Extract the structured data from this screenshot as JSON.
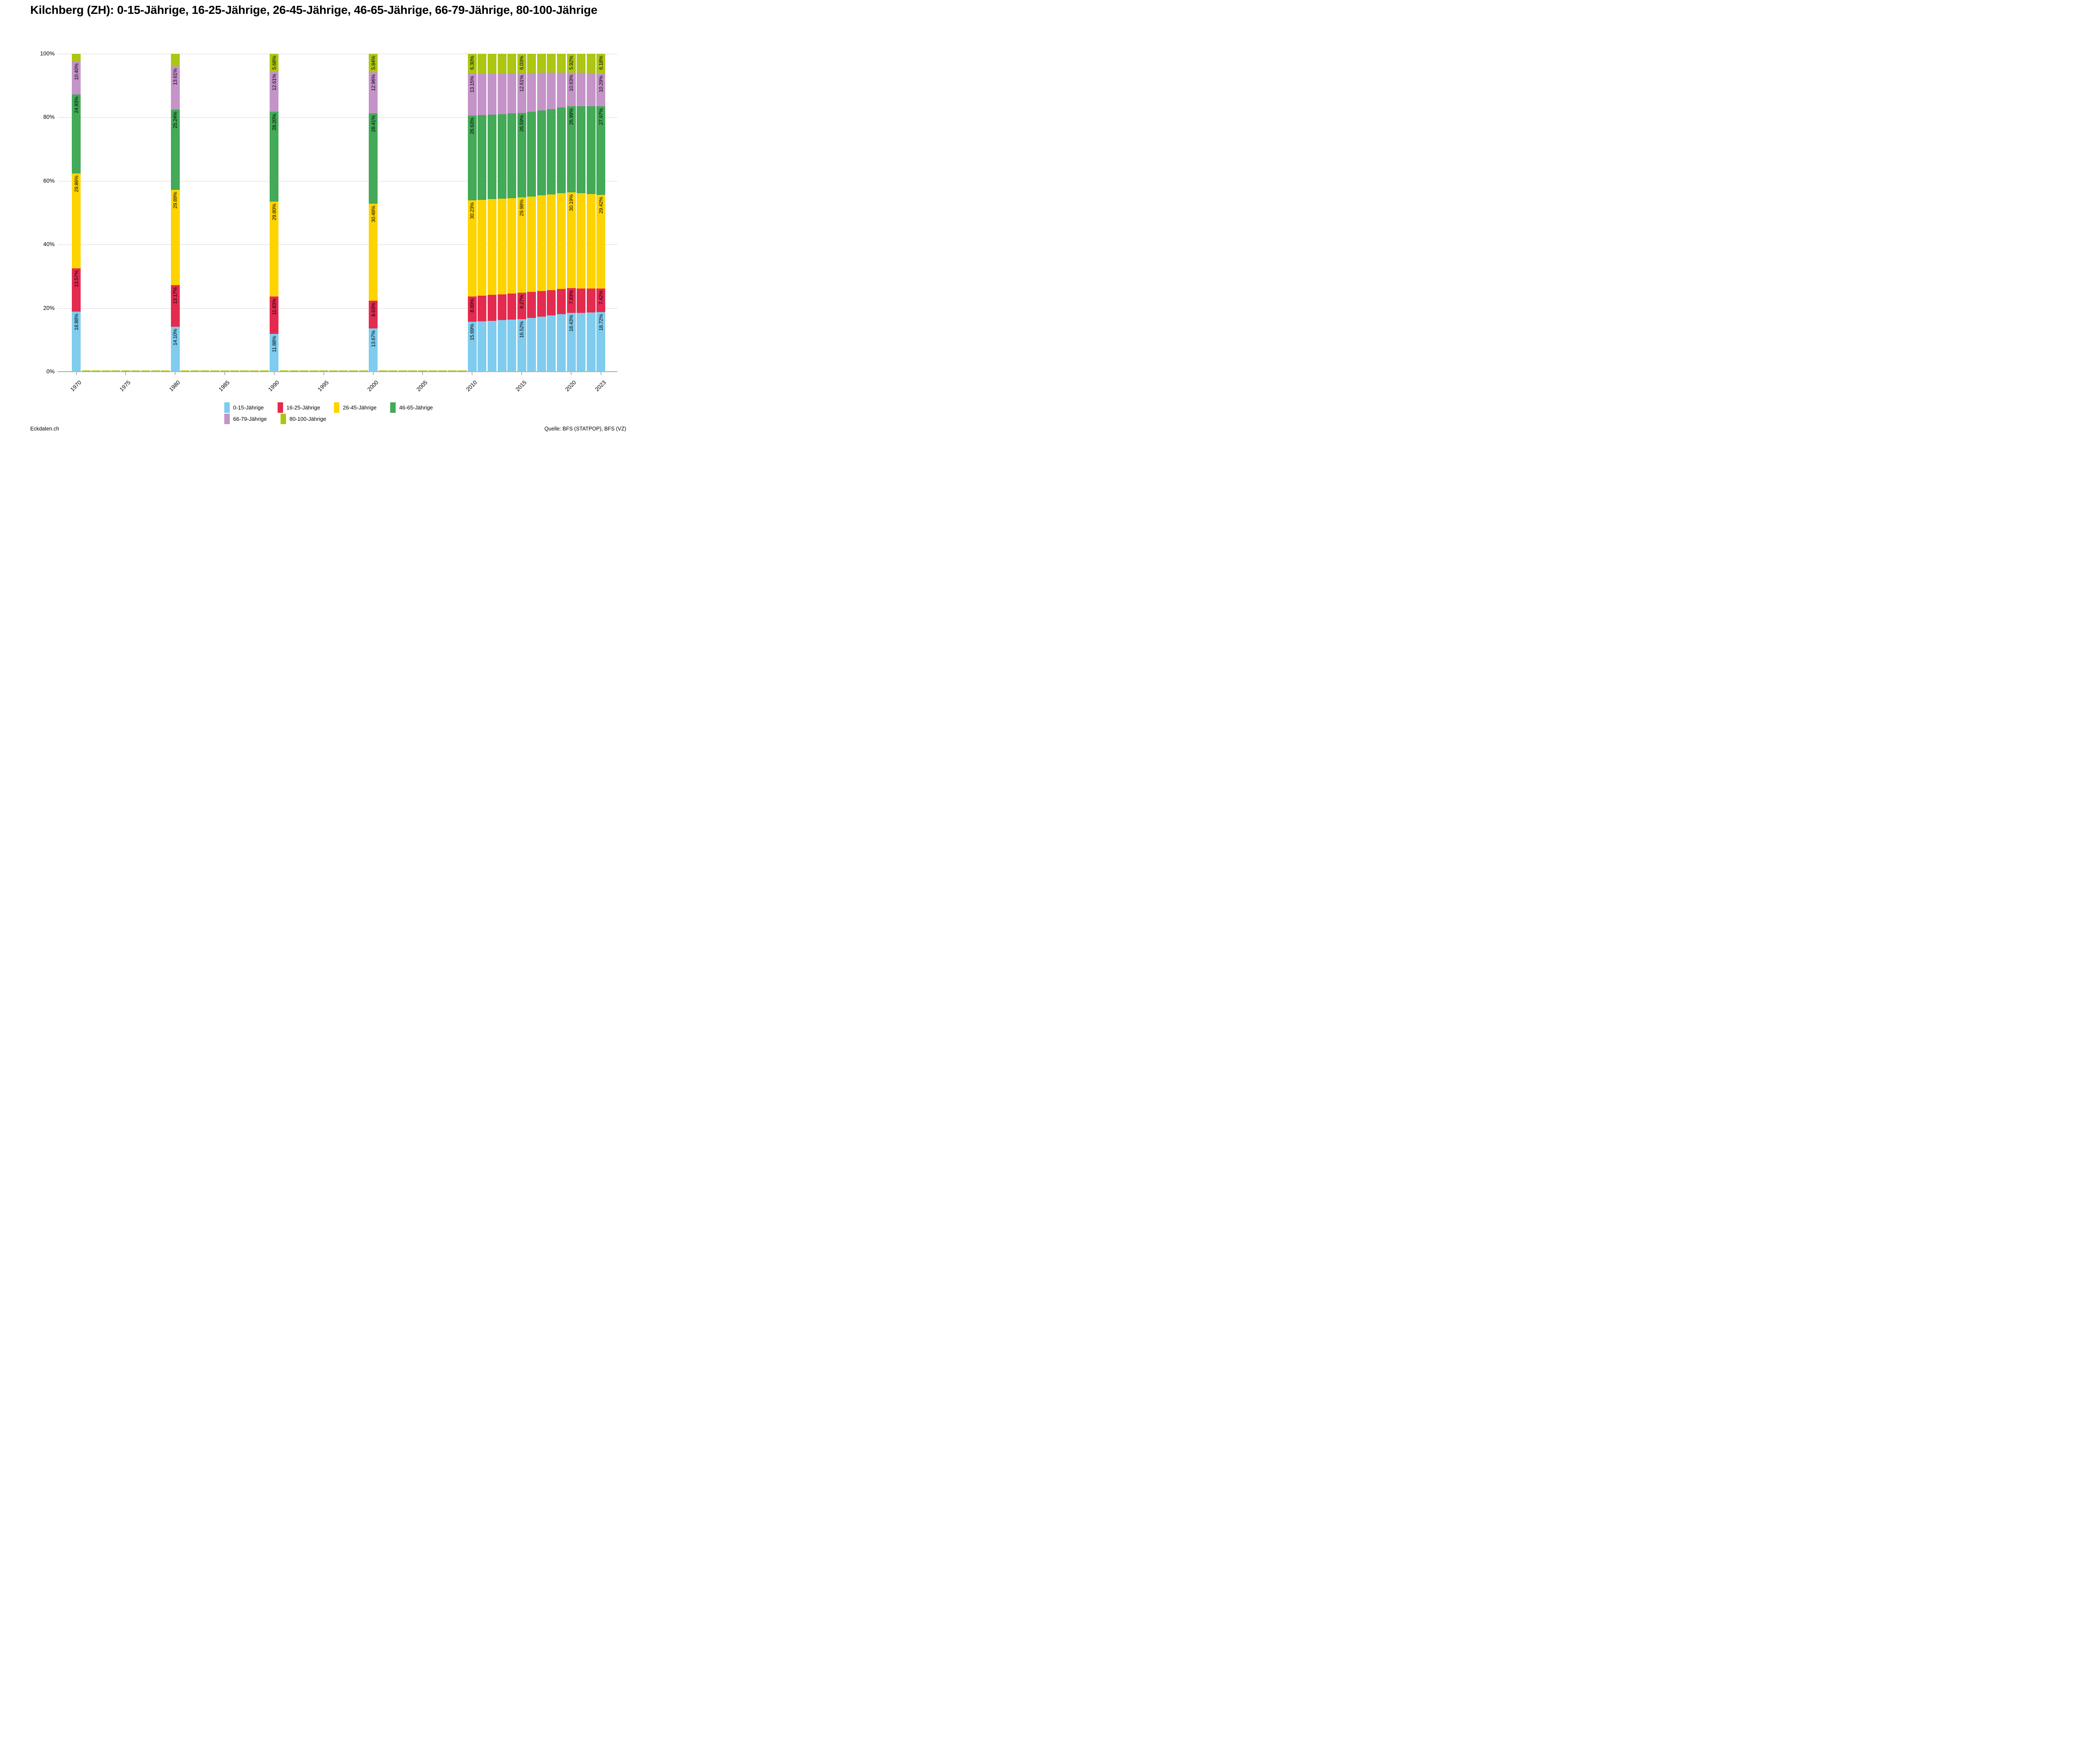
{
  "title": "Kilchberg (ZH): 0-15-Jährige, 16-25-Jährige, 26-45-Jährige, 46-65-Jährige, 66-79-Jährige, 80-100-Jährige",
  "footer": {
    "left": "Eckdaten.ch",
    "right": "Quelle: BFS (STATPOP), BFS (VZ)"
  },
  "legend": {
    "items": [
      {
        "label": "0-15-Jährige",
        "color": "#7fccee",
        "row": 1
      },
      {
        "label": "16-25-Jährige",
        "color": "#e52a50",
        "row": 1
      },
      {
        "label": "26-45-Jährige",
        "color": "#fdd400",
        "row": 1
      },
      {
        "label": "46-65-Jährige",
        "color": "#43aa57",
        "row": 1
      },
      {
        "label": "66-79-Jährige",
        "color": "#c493c8",
        "row": 2
      },
      {
        "label": "80-100-Jährige",
        "color": "#adc613",
        "row": 2
      }
    ]
  },
  "axes": {
    "y_ticks": [
      {
        "value": 0,
        "label": "0%"
      },
      {
        "value": 20,
        "label": "20%"
      },
      {
        "value": 40,
        "label": "40%"
      },
      {
        "value": 60,
        "label": "60%"
      },
      {
        "value": 80,
        "label": "80%"
      },
      {
        "value": 100,
        "label": "100%"
      }
    ],
    "x_ticks": [
      {
        "year": 1970,
        "label": "1970"
      },
      {
        "year": 1975,
        "label": "1975"
      },
      {
        "year": 1980,
        "label": "1980"
      },
      {
        "year": 1985,
        "label": "1985"
      },
      {
        "year": 1990,
        "label": "1990"
      },
      {
        "year": 1995,
        "label": "1995"
      },
      {
        "year": 2000,
        "label": "2000"
      },
      {
        "year": 2005,
        "label": "2005"
      },
      {
        "year": 2010,
        "label": "2010"
      },
      {
        "year": 2015,
        "label": "2015"
      },
      {
        "year": 2020,
        "label": "2020"
      },
      {
        "year": 2023,
        "label": "2023"
      }
    ]
  },
  "chart_data": {
    "type": "bar",
    "stacked": true,
    "ylim": [
      0,
      100
    ],
    "grid": "horizontal, 20% steps",
    "legend_position": "bottom",
    "series_names": [
      "0-15-Jährige",
      "16-25-Jährige",
      "26-45-Jährige",
      "46-65-Jährige",
      "66-79-Jährige",
      "80-100-Jährige"
    ],
    "series_colors": [
      "#7fccee",
      "#e52a50",
      "#fdd400",
      "#43aa57",
      "#c493c8",
      "#adc613"
    ],
    "bars": [
      {
        "year": 1970,
        "estimated": false,
        "values": [
          18.88,
          13.57,
          29.86,
          24.93,
          10.4,
          2.36
        ],
        "labels": [
          "18.88%",
          "13.57%",
          "29.86%",
          "24.93%",
          "10.40%",
          null
        ]
      },
      {
        "year": 1980,
        "estimated": false,
        "values": [
          14.1,
          13.17,
          29.89,
          25.24,
          13.61,
          3.99
        ],
        "labels": [
          "14.10%",
          "13.17%",
          "29.89%",
          "25.24%",
          "13.61%",
          null
        ]
      },
      {
        "year": 1990,
        "estimated": false,
        "values": [
          11.88,
          11.83,
          29.8,
          28.2,
          12.61,
          5.68
        ],
        "labels": [
          "11.88%",
          "11.83%",
          "29.80%",
          "28.20%",
          "12.61%",
          "5.68%"
        ]
      },
      {
        "year": 2000,
        "estimated": false,
        "values": [
          13.67,
          8.63,
          30.48,
          28.41,
          12.96,
          5.84
        ],
        "labels": [
          "13.67%",
          "8.63%",
          "30.48%",
          "28.41%",
          "12.96%",
          "5.84%"
        ]
      },
      {
        "year": 2010,
        "estimated": false,
        "values": [
          15.69,
          8.0,
          30.23,
          26.63,
          13.15,
          6.3
        ],
        "labels": [
          "15.69%",
          "8.00%",
          "30.23%",
          "26.63%",
          "13.15%",
          "6.30%"
        ]
      },
      {
        "year": 2011,
        "estimated": true,
        "values": [
          15.86,
          8.05,
          30.18,
          26.62,
          13.04,
          6.25
        ],
        "labels": [
          null,
          null,
          null,
          null,
          null,
          null
        ]
      },
      {
        "year": 2012,
        "estimated": true,
        "values": [
          16.02,
          8.11,
          30.13,
          26.61,
          12.93,
          6.2
        ],
        "labels": [
          null,
          null,
          null,
          null,
          null,
          null
        ]
      },
      {
        "year": 2013,
        "estimated": true,
        "values": [
          16.19,
          8.16,
          30.08,
          26.6,
          12.82,
          6.15
        ],
        "labels": [
          null,
          null,
          null,
          null,
          null,
          null
        ]
      },
      {
        "year": 2014,
        "estimated": true,
        "values": [
          16.35,
          8.22,
          30.03,
          26.6,
          12.72,
          6.08
        ],
        "labels": [
          null,
          null,
          null,
          null,
          null,
          null
        ]
      },
      {
        "year": 2015,
        "estimated": false,
        "values": [
          16.52,
          8.27,
          29.98,
          26.59,
          12.61,
          6.03
        ],
        "labels": [
          "16.52%",
          "8.27%",
          "29.98%",
          "26.59%",
          "12.61%",
          "6.03%"
        ]
      },
      {
        "year": 2016,
        "estimated": true,
        "values": [
          16.9,
          8.18,
          30.02,
          26.67,
          12.21,
          6.02
        ],
        "labels": [
          null,
          null,
          null,
          null,
          null,
          null
        ]
      },
      {
        "year": 2017,
        "estimated": true,
        "values": [
          17.28,
          8.09,
          30.06,
          26.75,
          11.82,
          6.0
        ],
        "labels": [
          null,
          null,
          null,
          null,
          null,
          null
        ]
      },
      {
        "year": 2018,
        "estimated": true,
        "values": [
          17.66,
          8.0,
          30.11,
          26.83,
          11.42,
          5.98
        ],
        "labels": [
          null,
          null,
          null,
          null,
          null,
          null
        ]
      },
      {
        "year": 2019,
        "estimated": true,
        "values": [
          18.05,
          7.92,
          30.15,
          26.91,
          11.02,
          5.95
        ],
        "labels": [
          null,
          null,
          null,
          null,
          null,
          null
        ]
      },
      {
        "year": 2020,
        "estimated": false,
        "values": [
          18.43,
          7.83,
          30.19,
          26.99,
          10.63,
          5.92
        ],
        "labels": [
          "18.43%",
          "7.83%",
          "30.19%",
          "26.99%",
          "10.63%",
          "5.92%"
        ]
      },
      {
        "year": 2021,
        "estimated": true,
        "values": [
          18.53,
          7.69,
          29.93,
          27.32,
          10.52,
          6.01
        ],
        "labels": [
          null,
          null,
          null,
          null,
          null,
          null
        ]
      },
      {
        "year": 2022,
        "estimated": true,
        "values": [
          18.62,
          7.56,
          29.68,
          27.64,
          10.4,
          6.1
        ],
        "labels": [
          null,
          null,
          null,
          null,
          null,
          null
        ]
      },
      {
        "year": 2023,
        "estimated": false,
        "values": [
          18.72,
          7.42,
          29.42,
          27.97,
          10.29,
          6.18
        ],
        "labels": [
          "18.72%",
          "7.42%",
          "29.42%",
          "27.97%",
          "10.29%",
          "6.18%"
        ]
      }
    ],
    "zero_marker_years": [
      1971,
      1972,
      1973,
      1974,
      1975,
      1976,
      1977,
      1978,
      1979,
      1981,
      1982,
      1983,
      1984,
      1985,
      1986,
      1987,
      1988,
      1989,
      1991,
      1992,
      1993,
      1994,
      1995,
      1996,
      1997,
      1998,
      1999,
      2001,
      2002,
      2003,
      2004,
      2005,
      2006,
      2007,
      2008,
      2009
    ],
    "zero_marker_color": "#adc613",
    "gridline_color": "#d9d9d9",
    "axisline_color": "#ababab"
  }
}
